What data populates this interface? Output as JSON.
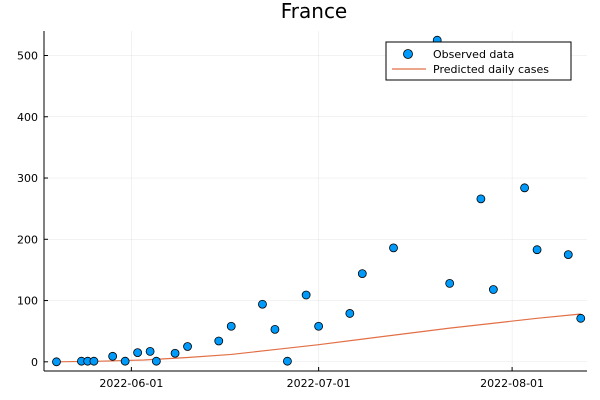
{
  "chart_data": {
    "type": "scatter",
    "title": "France",
    "xlabel": "",
    "ylabel": "",
    "x_axis_type": "date",
    "xlim": [
      "2022-05-18",
      "2022-08-13"
    ],
    "ylim": [
      -15,
      540
    ],
    "x_ticks": [
      "2022-06-01",
      "2022-07-01",
      "2022-08-01"
    ],
    "y_ticks": [
      0,
      100,
      200,
      300,
      400,
      500
    ],
    "grid": true,
    "legend_position": "top-right",
    "series": [
      {
        "name": "Observed data",
        "kind": "scatter",
        "color": "#009AFA",
        "points": [
          {
            "x": "2022-05-20",
            "y": 0
          },
          {
            "x": "2022-05-24",
            "y": 1
          },
          {
            "x": "2022-05-25",
            "y": 1
          },
          {
            "x": "2022-05-26",
            "y": 1
          },
          {
            "x": "2022-05-29",
            "y": 9
          },
          {
            "x": "2022-05-31",
            "y": 1
          },
          {
            "x": "2022-06-02",
            "y": 15
          },
          {
            "x": "2022-06-04",
            "y": 17
          },
          {
            "x": "2022-06-05",
            "y": 1
          },
          {
            "x": "2022-06-08",
            "y": 14
          },
          {
            "x": "2022-06-10",
            "y": 25
          },
          {
            "x": "2022-06-15",
            "y": 34
          },
          {
            "x": "2022-06-17",
            "y": 58
          },
          {
            "x": "2022-06-22",
            "y": 94
          },
          {
            "x": "2022-06-24",
            "y": 53
          },
          {
            "x": "2022-06-26",
            "y": 1
          },
          {
            "x": "2022-06-29",
            "y": 109
          },
          {
            "x": "2022-07-01",
            "y": 58
          },
          {
            "x": "2022-07-06",
            "y": 79
          },
          {
            "x": "2022-07-08",
            "y": 144
          },
          {
            "x": "2022-07-13",
            "y": 186
          },
          {
            "x": "2022-07-20",
            "y": 525
          },
          {
            "x": "2022-07-22",
            "y": 128
          },
          {
            "x": "2022-07-27",
            "y": 266
          },
          {
            "x": "2022-07-29",
            "y": 118
          },
          {
            "x": "2022-08-03",
            "y": 284
          },
          {
            "x": "2022-08-05",
            "y": 183
          },
          {
            "x": "2022-08-10",
            "y": 175
          },
          {
            "x": "2022-08-12",
            "y": 71
          }
        ]
      },
      {
        "name": "Predicted daily cases",
        "kind": "line",
        "color": "#E26F46",
        "points": [
          {
            "x": "2022-05-20",
            "y": 0
          },
          {
            "x": "2022-05-27",
            "y": 1
          },
          {
            "x": "2022-06-03",
            "y": 3
          },
          {
            "x": "2022-06-10",
            "y": 7
          },
          {
            "x": "2022-06-17",
            "y": 12
          },
          {
            "x": "2022-06-24",
            "y": 20
          },
          {
            "x": "2022-07-01",
            "y": 28
          },
          {
            "x": "2022-07-08",
            "y": 37
          },
          {
            "x": "2022-07-15",
            "y": 46
          },
          {
            "x": "2022-07-22",
            "y": 55
          },
          {
            "x": "2022-07-29",
            "y": 63
          },
          {
            "x": "2022-08-05",
            "y": 71
          },
          {
            "x": "2022-08-12",
            "y": 78
          }
        ]
      }
    ]
  }
}
